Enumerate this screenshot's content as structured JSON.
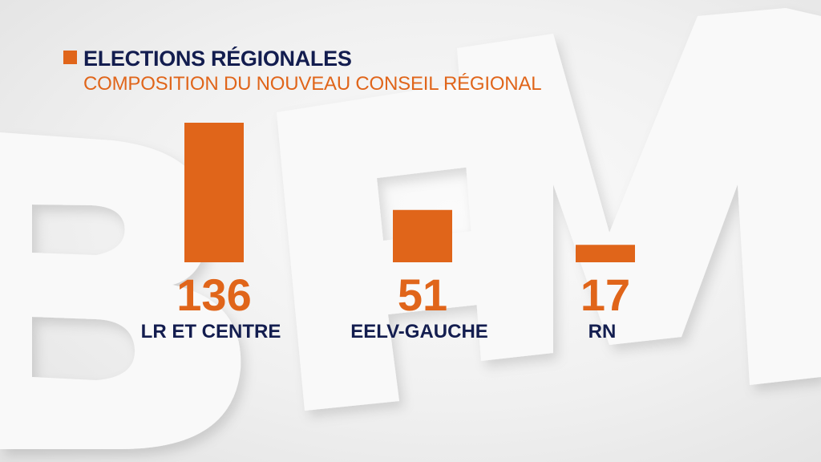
{
  "header": {
    "title": "ELECTIONS RÉGIONALES",
    "subtitle": "COMPOSITION DU NOUVEAU CONSEIL RÉGIONAL"
  },
  "colors": {
    "bar": "#e0651a",
    "label": "#131d4f",
    "value": "#e0651a"
  },
  "chart_data": {
    "type": "bar",
    "title": "ELECTIONS RÉGIONALES",
    "subtitle": "COMPOSITION DU NOUVEAU CONSEIL RÉGIONAL",
    "categories": [
      "LR ET CENTRE",
      "EELV-GAUCHE",
      "RN"
    ],
    "values": [
      136,
      51,
      17
    ],
    "xlabel": "",
    "ylabel": "",
    "ylim": [
      0,
      136
    ],
    "grid": false
  }
}
